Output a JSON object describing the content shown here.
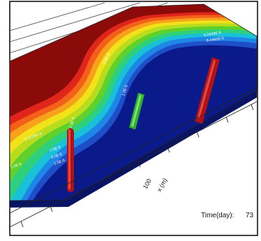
{
  "colors": {
    "frame": "#000000",
    "background": "#ffffff",
    "field_high": "#8b0b0b",
    "field_low": "#0b1a8a",
    "injector_well": "#b31212",
    "producer_well": "#2fb12b"
  },
  "contour_labels": [
    "5.0449E-5",
    "8.4465E-5",
    "1.0E-5",
    "1.0E-5",
    "9.1515E-9",
    "1.0E-5",
    "7.5E-5",
    "5.0E-5",
    "2.5E-5",
    "1.0E-5"
  ],
  "axis": {
    "tick_label": "100",
    "label": "x (m)"
  },
  "time_readout": {
    "label": "Time(day):",
    "value": "73"
  }
}
